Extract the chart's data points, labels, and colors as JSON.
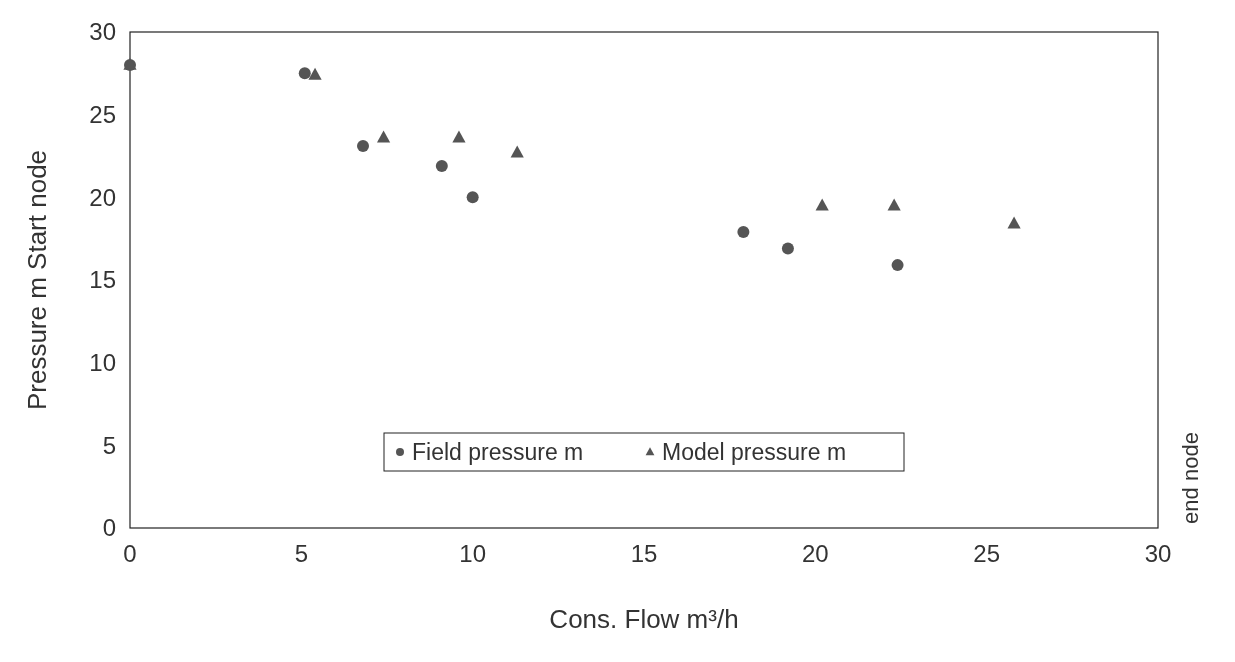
{
  "chart_data": {
    "type": "scatter",
    "xlabel": "Cons. Flow m³/h",
    "ylabel": "Pressure m Start node",
    "y2label": "end node",
    "xlim": [
      0,
      30
    ],
    "xticks": [
      0,
      5,
      10,
      15,
      20,
      25,
      30
    ],
    "ylim": [
      0,
      30
    ],
    "yticks": [
      0,
      5,
      10,
      15,
      20,
      25,
      30
    ],
    "grid": false,
    "legend": "bottom",
    "series": [
      {
        "name": "Field pressure m",
        "color": "#555555",
        "marker": "circle",
        "x": [
          0,
          5.1,
          6.8,
          9.1,
          10.0,
          17.9,
          19.2,
          22.4
        ],
        "values": [
          28.0,
          27.5,
          23.1,
          21.9,
          20.0,
          17.9,
          16.9,
          15.9
        ]
      },
      {
        "name": "Model pressure m",
        "color": "#555555",
        "marker": "triangle",
        "x": [
          0,
          5.4,
          7.4,
          9.6,
          11.3,
          20.2,
          22.3,
          25.8
        ],
        "values": [
          28.0,
          27.4,
          23.6,
          23.6,
          22.7,
          19.5,
          19.5,
          18.4
        ]
      }
    ]
  }
}
